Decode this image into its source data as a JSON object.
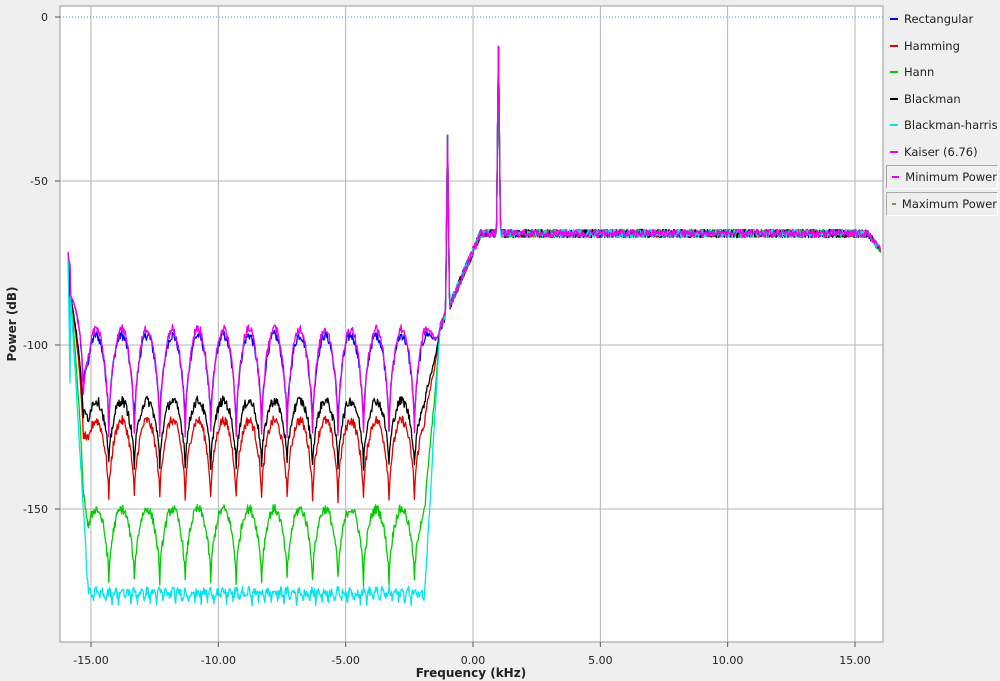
{
  "chart_data": {
    "type": "line",
    "xlabel": "Frequency (kHz)",
    "ylabel": "Power (dB)",
    "xlim": [
      -16.0,
      16.0
    ],
    "ylim": [
      -190,
      4
    ],
    "x_ticks": [
      -15,
      -10,
      -5,
      0,
      5,
      10,
      15
    ],
    "x_tick_labels": [
      "-15.00",
      "-10.00",
      "-5.00",
      "0.00",
      "5.00",
      "10.00",
      "15.00"
    ],
    "y_ticks": [
      0,
      -50,
      -100,
      -150
    ],
    "y_tick_labels": [
      "0",
      "-50",
      "-100",
      "-150"
    ],
    "grid": true,
    "legend_placement": "right",
    "reference_line": {
      "y": 0,
      "color": "#3c9bd0",
      "style": "dotted"
    },
    "passband": {
      "start_khz": 0.3,
      "level_db": -66
    },
    "stopband": {
      "start_khz": -15.8,
      "end_khz": -1.3
    },
    "tones": [
      {
        "x": -1.0,
        "peak_db": -36
      },
      {
        "x": 1.0,
        "peak_db": -9
      }
    ],
    "series": [
      {
        "name": "Rectangular",
        "color": "#0000ff",
        "floor_db": -97,
        "lobe_depth": 28,
        "ripple_period_khz": 1.0
      },
      {
        "name": "Hamming",
        "color": "#e00000",
        "floor_db": -123,
        "lobe_depth": 24,
        "ripple_period_khz": 1.0
      },
      {
        "name": "Hann",
        "color": "#00cc00",
        "floor_db": -150,
        "lobe_depth": 22,
        "ripple_period_khz": 1.0
      },
      {
        "name": "Blackman",
        "color": "#000000",
        "floor_db": -117,
        "lobe_depth": 20,
        "ripple_period_khz": 1.0
      },
      {
        "name": "Blackman-harris",
        "color": "#00e5ee",
        "floor_db": -175,
        "lobe_depth": 3,
        "ripple_period_khz": 0.25
      },
      {
        "name": "Kaiser (6.76)",
        "color": "#ee00ee",
        "floor_db": -95,
        "lobe_depth": 32,
        "ripple_period_khz": 1.0
      }
    ],
    "extra_legend": [
      {
        "name": "Minimum Power",
        "color": "#ee00ee"
      },
      {
        "name": "Maximum Power",
        "color": "#8b8b5a"
      }
    ]
  }
}
